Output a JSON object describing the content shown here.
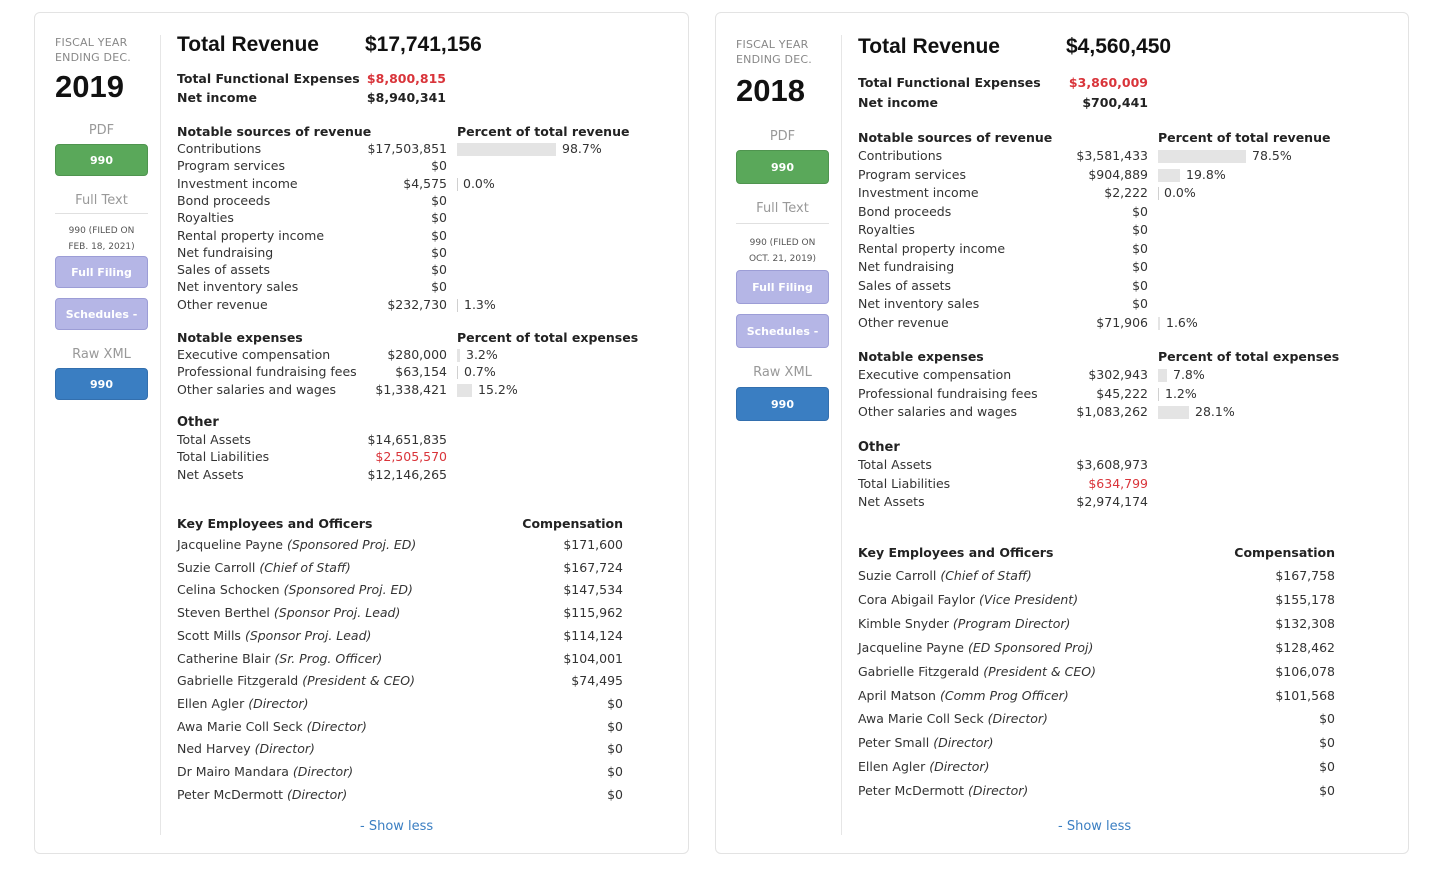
{
  "cards": [
    {
      "fiscal_label_line1": "FISCAL YEAR",
      "fiscal_label_line2": "ENDING DEC.",
      "year": "2019",
      "pdf_label": "PDF",
      "pdf_button": "990",
      "fulltext_label": "Full Text",
      "filed_line1": "990 (FILED ON",
      "filed_line2": "FEB. 18, 2021)",
      "full_filing_button": "Full Filing",
      "schedules_button": "Schedules -",
      "rawxml_label": "Raw XML",
      "rawxml_button": "990",
      "total_revenue_label": "Total Revenue",
      "total_revenue": "$17,741,156",
      "functional_expenses_label": "Total Functional Expenses",
      "functional_expenses": "$8,800,815",
      "net_income_label": "Net income",
      "net_income": "$8,940,341",
      "revenue_header": "Notable sources of revenue",
      "revenue_pct_header": "Percent of total revenue",
      "revenue": [
        {
          "label": "Contributions",
          "amount": "$17,503,851",
          "pct": "98.7%",
          "frac": 0.987
        },
        {
          "label": "Program services",
          "amount": "$0",
          "pct": "",
          "frac": 0
        },
        {
          "label": "Investment income",
          "amount": "$4,575",
          "pct": "0.0%",
          "frac": 0
        },
        {
          "label": "Bond proceeds",
          "amount": "$0",
          "pct": "",
          "frac": 0
        },
        {
          "label": "Royalties",
          "amount": "$0",
          "pct": "",
          "frac": 0
        },
        {
          "label": "Rental property income",
          "amount": "$0",
          "pct": "",
          "frac": 0
        },
        {
          "label": "Net fundraising",
          "amount": "$0",
          "pct": "",
          "frac": 0
        },
        {
          "label": "Sales of assets",
          "amount": "$0",
          "pct": "",
          "frac": 0
        },
        {
          "label": "Net inventory sales",
          "amount": "$0",
          "pct": "",
          "frac": 0
        },
        {
          "label": "Other revenue",
          "amount": "$232,730",
          "pct": "1.3%",
          "frac": 0.013
        }
      ],
      "expenses_header": "Notable expenses",
      "expenses_pct_header": "Percent of total expenses",
      "expenses": [
        {
          "label": "Executive compensation",
          "amount": "$280,000",
          "pct": "3.2%",
          "frac": 0.032
        },
        {
          "label": "Professional fundraising fees",
          "amount": "$63,154",
          "pct": "0.7%",
          "frac": 0.007
        },
        {
          "label": "Other salaries and wages",
          "amount": "$1,338,421",
          "pct": "15.2%",
          "frac": 0.152
        }
      ],
      "other_header": "Other",
      "other": [
        {
          "label": "Total Assets",
          "amount": "$14,651,835",
          "red": false
        },
        {
          "label": "Total Liabilities",
          "amount": "$2,505,570",
          "red": true
        },
        {
          "label": "Net Assets",
          "amount": "$12,146,265",
          "red": false
        }
      ],
      "employees_header": "Key Employees and Officers",
      "compensation_header": "Compensation",
      "employees": [
        {
          "name": "Jacqueline Payne",
          "title": "(Sponsored Proj. ED)",
          "comp": "$171,600"
        },
        {
          "name": "Suzie Carroll",
          "title": "(Chief of Staff)",
          "comp": "$167,724"
        },
        {
          "name": "Celina Schocken",
          "title": "(Sponsored Proj. ED)",
          "comp": "$147,534"
        },
        {
          "name": "Steven Berthel",
          "title": "(Sponsor Proj. Lead)",
          "comp": "$115,962"
        },
        {
          "name": "Scott Mills",
          "title": "(Sponsor Proj. Lead)",
          "comp": "$114,124"
        },
        {
          "name": "Catherine Blair",
          "title": "(Sr. Prog. Officer)",
          "comp": "$104,001"
        },
        {
          "name": "Gabrielle Fitzgerald",
          "title": "(President & CEO)",
          "comp": "$74,495"
        },
        {
          "name": "Ellen Agler",
          "title": "(Director)",
          "comp": "$0"
        },
        {
          "name": "Awa Marie Coll Seck",
          "title": "(Director)",
          "comp": "$0"
        },
        {
          "name": "Ned Harvey",
          "title": "(Director)",
          "comp": "$0"
        },
        {
          "name": "Dr Mairo Mandara",
          "title": "(Director)",
          "comp": "$0"
        },
        {
          "name": "Peter McDermott",
          "title": "(Director)",
          "comp": "$0"
        }
      ],
      "show_less": "- Show less"
    },
    {
      "fiscal_label_line1": "FISCAL YEAR",
      "fiscal_label_line2": "ENDING DEC.",
      "year": "2018",
      "pdf_label": "PDF",
      "pdf_button": "990",
      "fulltext_label": "Full Text",
      "filed_line1": "990 (FILED ON",
      "filed_line2": "OCT. 21, 2019)",
      "full_filing_button": "Full Filing",
      "schedules_button": "Schedules -",
      "rawxml_label": "Raw XML",
      "rawxml_button": "990",
      "total_revenue_label": "Total Revenue",
      "total_revenue": "$4,560,450",
      "functional_expenses_label": "Total Functional Expenses",
      "functional_expenses": "$3,860,009",
      "net_income_label": "Net income",
      "net_income": "$700,441",
      "revenue_header": "Notable sources of revenue",
      "revenue_pct_header": "Percent of total revenue",
      "revenue": [
        {
          "label": "Contributions",
          "amount": "$3,581,433",
          "pct": "78.5%",
          "frac": 0.785
        },
        {
          "label": "Program services",
          "amount": "$904,889",
          "pct": "19.8%",
          "frac": 0.198
        },
        {
          "label": "Investment income",
          "amount": "$2,222",
          "pct": "0.0%",
          "frac": 0
        },
        {
          "label": "Bond proceeds",
          "amount": "$0",
          "pct": "",
          "frac": 0
        },
        {
          "label": "Royalties",
          "amount": "$0",
          "pct": "",
          "frac": 0
        },
        {
          "label": "Rental property income",
          "amount": "$0",
          "pct": "",
          "frac": 0
        },
        {
          "label": "Net fundraising",
          "amount": "$0",
          "pct": "",
          "frac": 0
        },
        {
          "label": "Sales of assets",
          "amount": "$0",
          "pct": "",
          "frac": 0
        },
        {
          "label": "Net inventory sales",
          "amount": "$0",
          "pct": "",
          "frac": 0
        },
        {
          "label": "Other revenue",
          "amount": "$71,906",
          "pct": "1.6%",
          "frac": 0.016
        }
      ],
      "expenses_header": "Notable expenses",
      "expenses_pct_header": "Percent of total expenses",
      "expenses": [
        {
          "label": "Executive compensation",
          "amount": "$302,943",
          "pct": "7.8%",
          "frac": 0.078
        },
        {
          "label": "Professional fundraising fees",
          "amount": "$45,222",
          "pct": "1.2%",
          "frac": 0.012
        },
        {
          "label": "Other salaries and wages",
          "amount": "$1,083,262",
          "pct": "28.1%",
          "frac": 0.281
        }
      ],
      "other_header": "Other",
      "other": [
        {
          "label": "Total Assets",
          "amount": "$3,608,973",
          "red": false
        },
        {
          "label": "Total Liabilities",
          "amount": "$634,799",
          "red": true
        },
        {
          "label": "Net Assets",
          "amount": "$2,974,174",
          "red": false
        }
      ],
      "employees_header": "Key Employees and Officers",
      "compensation_header": "Compensation",
      "employees": [
        {
          "name": "Suzie Carroll",
          "title": "(Chief of Staff)",
          "comp": "$167,758"
        },
        {
          "name": "Cora Abigail Faylor",
          "title": "(Vice President)",
          "comp": "$155,178"
        },
        {
          "name": "Kimble Snyder",
          "title": "(Program Director)",
          "comp": "$132,308"
        },
        {
          "name": "Jacqueline Payne",
          "title": "(ED Sponsored Proj)",
          "comp": "$128,462"
        },
        {
          "name": "Gabrielle Fitzgerald",
          "title": "(President & CEO)",
          "comp": "$106,078"
        },
        {
          "name": "April Matson",
          "title": "(Comm Prog Officer)",
          "comp": "$101,568"
        },
        {
          "name": "Awa Marie Coll Seck",
          "title": "(Director)",
          "comp": "$0"
        },
        {
          "name": "Peter Small",
          "title": "(Director)",
          "comp": "$0"
        },
        {
          "name": "Ellen Agler",
          "title": "(Director)",
          "comp": "$0"
        },
        {
          "name": "Peter McDermott",
          "title": "(Director)",
          "comp": "$0"
        }
      ],
      "show_less": "- Show less"
    }
  ],
  "colors": {
    "green_button": "#5aa85a",
    "blue_button": "#3a7ec2",
    "lavender_button": "#b5b6e6",
    "red_value": "#d9343a",
    "link": "#3a7ec2",
    "bar": "#e4e4e4"
  }
}
